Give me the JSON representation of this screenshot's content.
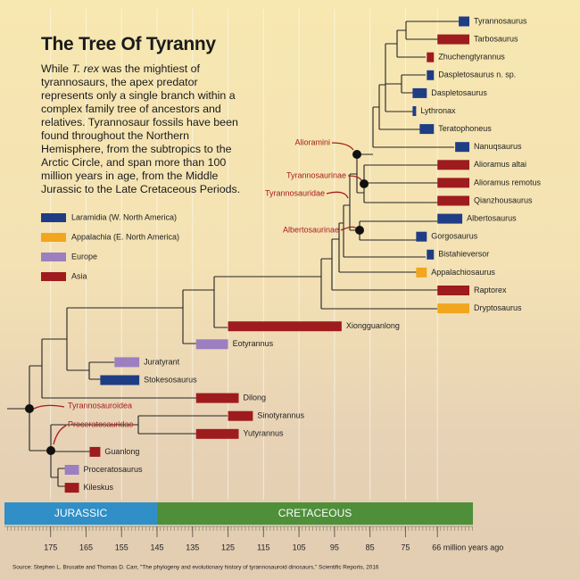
{
  "chart_data": {
    "type": "phylogeny",
    "title": "The Tree Of Tyranny",
    "description_before": "While",
    "description_italic": "T. rex",
    "description_after": "was the mightiest of tyrannosaurs, the apex predator represents only a single branch within a complex family tree of ancestors and relatives. Tyrannosaur fossils have been found throughout the Northern Hemisphere, from the subtropics to the Arctic Circle, and span more than 100 million years in age, from the Middle Jurassic to the Late Cretaceous Periods.",
    "regions": [
      {
        "name": "Laramidia (W. North America)",
        "color": "#1f3d85"
      },
      {
        "name": "Appalachia (E. North America)",
        "color": "#f2a61e"
      },
      {
        "name": "Europe",
        "color": "#9c7fc0"
      },
      {
        "name": "Asia",
        "color": "#9e1b1e"
      }
    ],
    "taxa": [
      {
        "name": "Tyrannosaurus",
        "region": "Laramidia (W. North America)",
        "range": [
          60,
          57
        ]
      },
      {
        "name": "Tarbosaurus",
        "region": "Asia",
        "range": [
          66,
          57
        ]
      },
      {
        "name": "Zhuchengtyrannus",
        "region": "Asia",
        "range": [
          69,
          67
        ]
      },
      {
        "name": "Daspletosaurus n. sp.",
        "region": "Laramidia (W. North America)",
        "range": [
          69,
          67
        ]
      },
      {
        "name": "Daspletosaurus",
        "region": "Laramidia (W. North America)",
        "range": [
          73,
          69
        ]
      },
      {
        "name": "Lythronax",
        "region": "Laramidia (W. North America)",
        "range": [
          73,
          72
        ]
      },
      {
        "name": "Teratophoneus",
        "region": "Laramidia (W. North America)",
        "range": [
          71,
          67
        ]
      },
      {
        "name": "Nanuqsaurus",
        "region": "Laramidia (W. North America)",
        "range": [
          61,
          57
        ]
      },
      {
        "name": "Alioramus altai",
        "region": "Asia",
        "range": [
          66,
          57
        ]
      },
      {
        "name": "Alioramus remotus",
        "region": "Asia",
        "range": [
          66,
          57
        ]
      },
      {
        "name": "Qianzhousaurus",
        "region": "Asia",
        "range": [
          66,
          57
        ]
      },
      {
        "name": "Albertosaurus",
        "region": "Laramidia (W. North America)",
        "range": [
          66,
          59
        ]
      },
      {
        "name": "Gorgosaurus",
        "region": "Laramidia (W. North America)",
        "range": [
          72,
          69
        ]
      },
      {
        "name": "Bistahieversor",
        "region": "Laramidia (W. North America)",
        "range": [
          69,
          67
        ]
      },
      {
        "name": "Appalachiosaurus",
        "region": "Appalachia (E. North America)",
        "range": [
          72,
          69
        ]
      },
      {
        "name": "Raptorex",
        "region": "Asia",
        "range": [
          66,
          57
        ]
      },
      {
        "name": "Dryptosaurus",
        "region": "Appalachia (E. North America)",
        "range": [
          66,
          57
        ]
      },
      {
        "name": "Xiongguanlong",
        "region": "Asia",
        "range": [
          125,
          93
        ]
      },
      {
        "name": "Eotyrannus",
        "region": "Europe",
        "range": [
          134,
          125
        ]
      },
      {
        "name": "Juratyrant",
        "region": "Europe",
        "range": [
          157,
          150
        ]
      },
      {
        "name": "Stokesosaurus",
        "region": "Laramidia (W. North America)",
        "range": [
          161,
          150
        ]
      },
      {
        "name": "Dilong",
        "region": "Asia",
        "range": [
          134,
          122
        ]
      },
      {
        "name": "Sinotyrannus",
        "region": "Asia",
        "range": [
          125,
          118
        ]
      },
      {
        "name": "Yutyrannus",
        "region": "Asia",
        "range": [
          134,
          122
        ]
      },
      {
        "name": "Guanlong",
        "region": "Asia",
        "range": [
          164,
          161
        ]
      },
      {
        "name": "Proceratosaurus",
        "region": "Europe",
        "range": [
          171,
          167
        ]
      },
      {
        "name": "Kileskus",
        "region": "Asia",
        "range": [
          171,
          167
        ]
      }
    ],
    "clades": [
      "Alioramini",
      "Tyrannosaurinae",
      "Tyrannosauridae",
      "Albertosaurinae",
      "Tyrannosauroidea",
      "Proceratosauridae"
    ],
    "periods": [
      {
        "name": "JURASSIC",
        "range": [
          188,
          145
        ],
        "color": "#2f8fc6"
      },
      {
        "name": "CRETACEOUS",
        "range": [
          145,
          56
        ],
        "color": "#4f8f3a"
      }
    ],
    "xlim": [
      188,
      56
    ],
    "xticks": [
      175,
      165,
      155,
      145,
      135,
      125,
      115,
      105,
      95,
      85,
      75,
      {
        "value": 66,
        "label": "66 million years ago"
      }
    ],
    "grid": true,
    "source": "Source: Stephen L. Brusatte and Thomas D. Carr, \"The phylogeny and evolutionary history of tyrannosauroid dinosaurs,\" Scientific Reports, 2016"
  }
}
